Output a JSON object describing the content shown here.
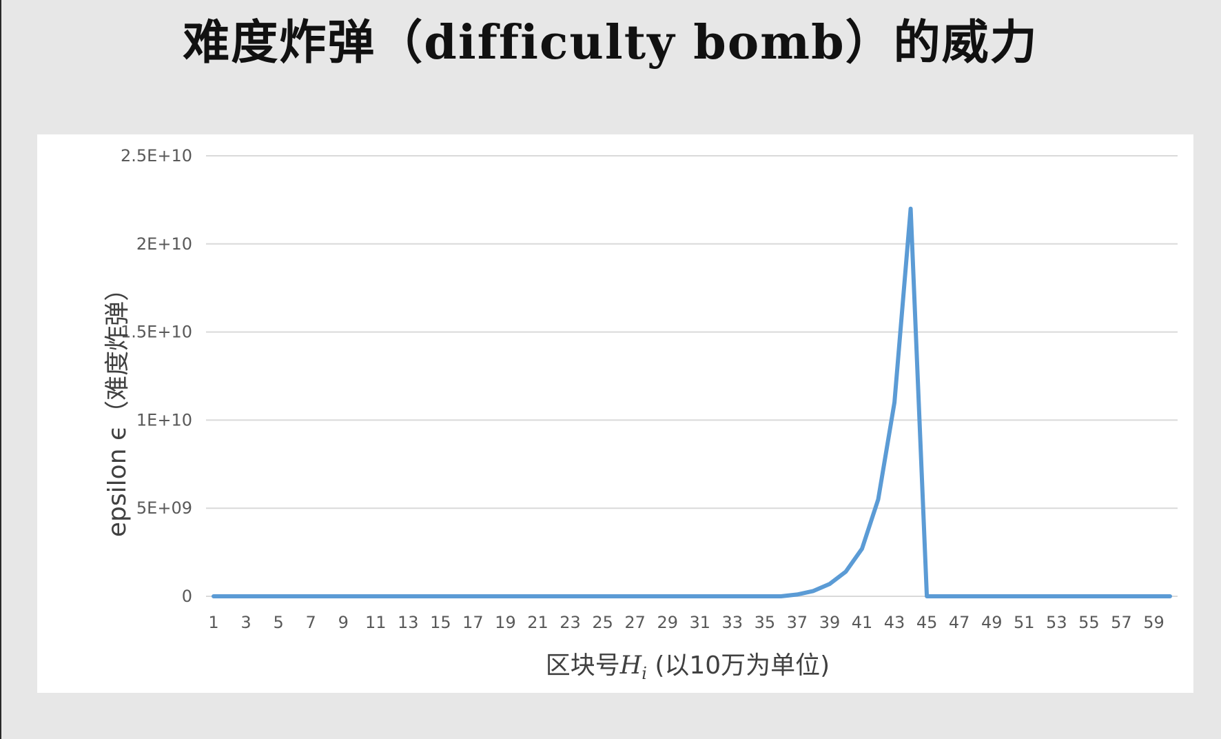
{
  "slide": {
    "title": "难度炸弹（difficulty bomb）的威力"
  },
  "chart_data": {
    "type": "line",
    "title": "",
    "xlabel": "区块号",
    "xlabel_symbol": "H",
    "xlabel_subscript": "i",
    "xlabel_suffix": " (以10万为单位)",
    "ylabel": "epsilon ϵ（难度炸弹）",
    "x": [
      1,
      2,
      3,
      4,
      5,
      6,
      7,
      8,
      9,
      10,
      11,
      12,
      13,
      14,
      15,
      16,
      17,
      18,
      19,
      20,
      21,
      22,
      23,
      24,
      25,
      26,
      27,
      28,
      29,
      30,
      31,
      32,
      33,
      34,
      35,
      36,
      37,
      38,
      39,
      40,
      41,
      42,
      43,
      44,
      45,
      46,
      47,
      48,
      49,
      50,
      51,
      52,
      53,
      54,
      55,
      56,
      57,
      58,
      59,
      60
    ],
    "x_tick_labels": [
      "1",
      "3",
      "5",
      "7",
      "9",
      "11",
      "13",
      "15",
      "17",
      "19",
      "21",
      "23",
      "25",
      "27",
      "29",
      "31",
      "33",
      "35",
      "37",
      "39",
      "41",
      "43",
      "45",
      "47",
      "49",
      "51",
      "53",
      "55",
      "57",
      "59"
    ],
    "series": [
      {
        "values": [
          0,
          0,
          0,
          0,
          0,
          0,
          0,
          0,
          0,
          0,
          0,
          0,
          0,
          0,
          0,
          0,
          0,
          0,
          0,
          0,
          0,
          0,
          0,
          0,
          0,
          0,
          0,
          0,
          0,
          0,
          0,
          0,
          0,
          0,
          0,
          0,
          100000000,
          300000000,
          700000000,
          1400000000,
          2700000000,
          5500000000,
          11000000000,
          22000000000,
          0,
          0,
          0,
          0,
          0,
          0,
          0,
          0,
          0,
          0,
          0,
          0,
          0,
          0,
          0,
          0
        ],
        "color": "#5b9bd5"
      }
    ],
    "y_ticks": [
      0,
      5000000000,
      10000000000,
      15000000000,
      20000000000,
      25000000000
    ],
    "y_tick_labels": [
      "0",
      "5E+09",
      "1E+10",
      "1.5E+10",
      "2E+10",
      "2.5E+10"
    ],
    "ylim": [
      0,
      25000000000
    ],
    "xlim": [
      1,
      60
    ],
    "grid": true,
    "legend": "none",
    "colors": {
      "line": "#5b9bd5",
      "grid": "#d9d9d9",
      "tick_text": "#595959"
    }
  }
}
